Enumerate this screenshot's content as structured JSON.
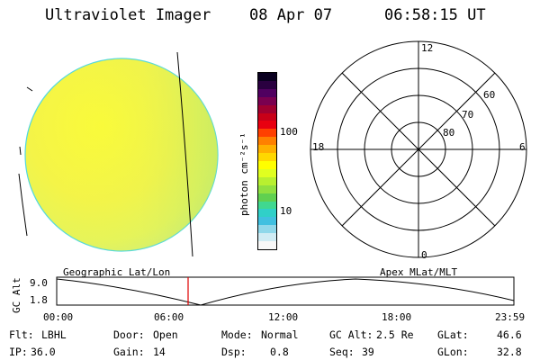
{
  "header": {
    "instrument": "Ultraviolet Imager",
    "date": "08 Apr 07",
    "time": "06:58:15 UT"
  },
  "colorbar": {
    "unit_label": "photon cm⁻²s⁻¹",
    "tick_100": "100",
    "tick_10": "10",
    "colors": [
      "#0a0020",
      "#2a0040",
      "#500060",
      "#7a0050",
      "#a00030",
      "#c80018",
      "#e80010",
      "#ff4000",
      "#ff8000",
      "#ffb000",
      "#ffd800",
      "#ffff00",
      "#e0ff20",
      "#b8f030",
      "#90e040",
      "#60d050",
      "#40d890",
      "#30d0c8",
      "#40c0e0",
      "#90d8ea",
      "#d0ecf4",
      "#f8f8f8"
    ]
  },
  "polar_plot": {
    "labels": {
      "top": "12",
      "bottom": "0",
      "left": "18",
      "right": "6",
      "ring_60": "60",
      "ring_70": "70",
      "ring_80": "80"
    }
  },
  "altitude_plot": {
    "left_label": "Geographic Lat/Lon",
    "right_label": "Apex MLat/MLT",
    "axis_label": "GC Alt",
    "y_max": "9.0",
    "y_min": "1.8",
    "time_ticks": [
      "00:00",
      "06:00",
      "12:00",
      "18:00",
      "23:59"
    ]
  },
  "info": {
    "flt_label": "Flt:",
    "flt_value": "LBHL",
    "ip_label": "IP:",
    "ip_value": "36.0",
    "door_label": "Door:",
    "door_value": "Open",
    "gain_label": "Gain:",
    "gain_value": "14",
    "mode_label": "Mode:",
    "mode_value": "Normal",
    "dsp_label": "Dsp:",
    "dsp_value": "0.8",
    "gcalt_label": "GC Alt:",
    "gcalt_value": "2.5 Re",
    "seq_label": "Seq:",
    "seq_value": "39",
    "glat_label": "GLat:",
    "glat_value": "46.6",
    "glon_label": "GLon:",
    "glon_value": "32.8"
  }
}
